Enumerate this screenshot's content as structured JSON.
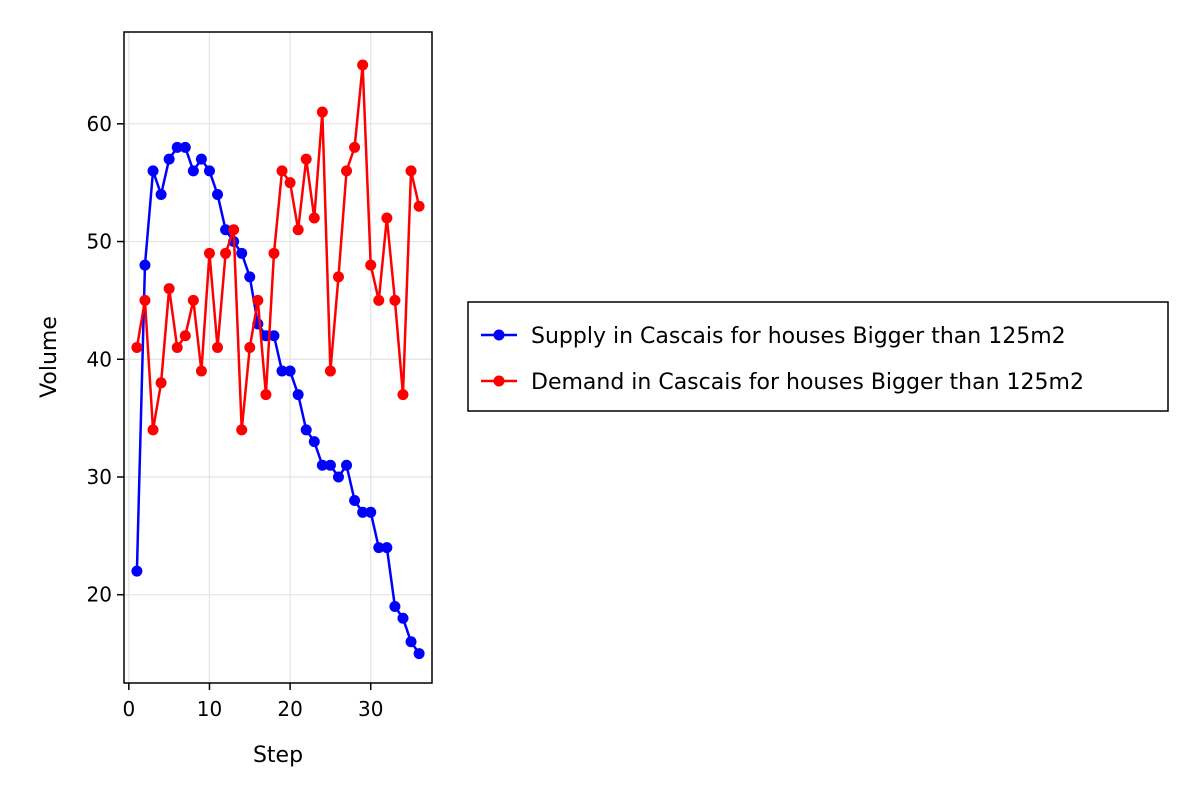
{
  "chart_data": {
    "type": "line",
    "title": "",
    "xlabel": "Step",
    "ylabel": "Volume",
    "xlim": [
      -0.6,
      37.6
    ],
    "ylim": [
      12.5,
      67.8
    ],
    "x_ticks": [
      0,
      10,
      20,
      30
    ],
    "y_ticks": [
      20,
      30,
      40,
      50,
      60
    ],
    "grid": true,
    "legend_position": "right",
    "x": [
      1,
      2,
      3,
      4,
      5,
      6,
      7,
      8,
      9,
      10,
      11,
      12,
      13,
      14,
      15,
      16,
      17,
      18,
      19,
      20,
      21,
      22,
      23,
      24,
      25,
      26,
      27,
      28,
      29,
      30,
      31,
      32,
      33,
      34,
      35,
      36
    ],
    "series": [
      {
        "name": "Supply in Cascais for houses Bigger than 125m2",
        "color": "#0000ff",
        "marker": "circle",
        "values": [
          22,
          48,
          56,
          54,
          57,
          58,
          58,
          56,
          57,
          56,
          54,
          51,
          50,
          49,
          47,
          43,
          42,
          42,
          39,
          39,
          37,
          34,
          33,
          31,
          31,
          30,
          31,
          28,
          27,
          27,
          24,
          24,
          19,
          18,
          16,
          15
        ]
      },
      {
        "name": "Demand in Cascais for houses Bigger than 125m2",
        "color": "#ff0000",
        "marker": "circle",
        "values": [
          41,
          45,
          34,
          38,
          46,
          41,
          42,
          45,
          39,
          49,
          41,
          49,
          51,
          34,
          41,
          45,
          37,
          49,
          56,
          55,
          51,
          57,
          52,
          61,
          39,
          47,
          56,
          58,
          65,
          48,
          45,
          52,
          45,
          37,
          56,
          53
        ]
      }
    ]
  }
}
